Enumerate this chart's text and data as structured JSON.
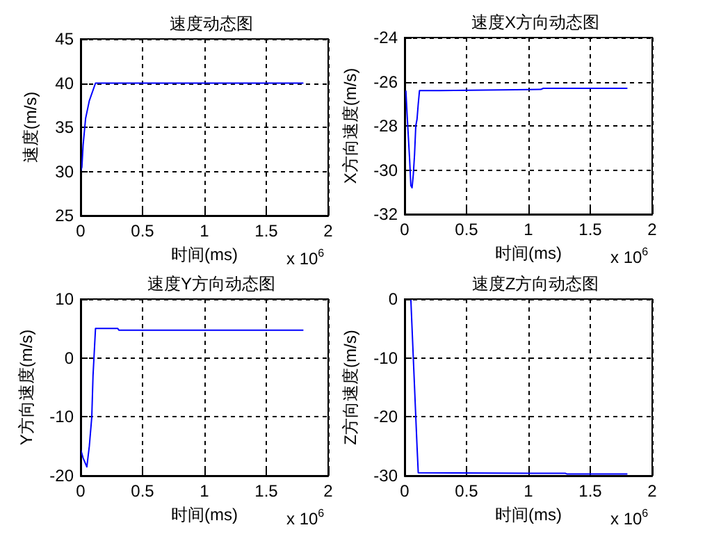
{
  "chart_data": [
    {
      "type": "line",
      "title": "速度动态图",
      "xlabel": "时间(ms)",
      "ylabel": "速度(m/s)",
      "annotations": [
        "x 10$^{6}$"
      ],
      "xlim": [
        0,
        2
      ],
      "xticks": [
        0,
        0.5,
        1,
        1.5,
        2
      ],
      "ylim": [
        25,
        45
      ],
      "yticks": [
        25,
        30,
        35,
        40,
        45
      ],
      "grid": true,
      "marker": "none",
      "line_style": "solid",
      "series": [
        {
          "color": "#0000ff",
          "x": [
            0,
            0.01,
            0.02,
            0.04,
            0.07,
            0.12,
            1.8
          ],
          "values": [
            30,
            30.5,
            33,
            36,
            38,
            40,
            40
          ]
        }
      ]
    },
    {
      "type": "line",
      "title": "速度X方向动态图",
      "xlabel": "时间(ms)",
      "ylabel": "X方向速度(m/s)",
      "annotations": [
        "x 10$^{6}$"
      ],
      "xlim": [
        0,
        2
      ],
      "xticks": [
        0,
        0.5,
        1,
        1.5,
        2
      ],
      "ylim": [
        -32,
        -24
      ],
      "yticks": [
        -32,
        -30,
        -28,
        -26,
        -24
      ],
      "grid": true,
      "marker": "none",
      "line_style": "solid",
      "series": [
        {
          "color": "#0000ff",
          "x": [
            0.01,
            0.02,
            0.03,
            0.04,
            0.05,
            0.06,
            0.07,
            0.08,
            0.09,
            0.1,
            0.11,
            0.12,
            0.28,
            1.1,
            1.12,
            1.8
          ],
          "values": [
            -26.4,
            -27.5,
            -28.5,
            -29.5,
            -30.7,
            -30.8,
            -30.2,
            -29.3,
            -28,
            -27.7,
            -27,
            -26.4,
            -26.4,
            -26.35,
            -26.3,
            -26.3
          ]
        }
      ]
    },
    {
      "type": "line",
      "title": "速度Y方向动态图",
      "xlabel": "时间(ms)",
      "ylabel": "Y方向速度(m/s)",
      "annotations": [
        "x 10$^{6}$"
      ],
      "xlim": [
        0,
        2
      ],
      "xticks": [
        0,
        0.5,
        1,
        1.5,
        2
      ],
      "ylim": [
        -20,
        10
      ],
      "yticks": [
        -20,
        -10,
        0,
        10
      ],
      "grid": true,
      "marker": "none",
      "line_style": "solid",
      "series": [
        {
          "color": "#0000ff",
          "x": [
            0,
            0.02,
            0.05,
            0.07,
            0.09,
            0.1,
            0.12,
            0.3,
            0.31,
            1.8
          ],
          "values": [
            -15.5,
            -17,
            -18.5,
            -15,
            -10,
            -3,
            5,
            5,
            4.7,
            4.7
          ]
        }
      ]
    },
    {
      "type": "line",
      "title": "速度Z方向动态图",
      "xlabel": "时间(ms)",
      "ylabel": "Z方向速度(m/s)",
      "annotations": [
        "x 10$^{6}$"
      ],
      "xlim": [
        0,
        2
      ],
      "xticks": [
        0,
        0.5,
        1,
        1.5,
        2
      ],
      "ylim": [
        -30,
        0
      ],
      "yticks": [
        -30,
        -20,
        -10,
        0
      ],
      "grid": true,
      "marker": "none",
      "line_style": "solid",
      "series": [
        {
          "color": "#0000ff",
          "x": [
            0,
            0.05,
            0.06,
            0.07,
            0.08,
            0.09,
            0.1,
            0.11,
            1.3,
            1.31,
            1.8
          ],
          "values": [
            0,
            0,
            -5,
            -10,
            -15,
            -20,
            -25,
            -29.5,
            -29.6,
            -29.7,
            -29.7
          ]
        }
      ]
    }
  ]
}
